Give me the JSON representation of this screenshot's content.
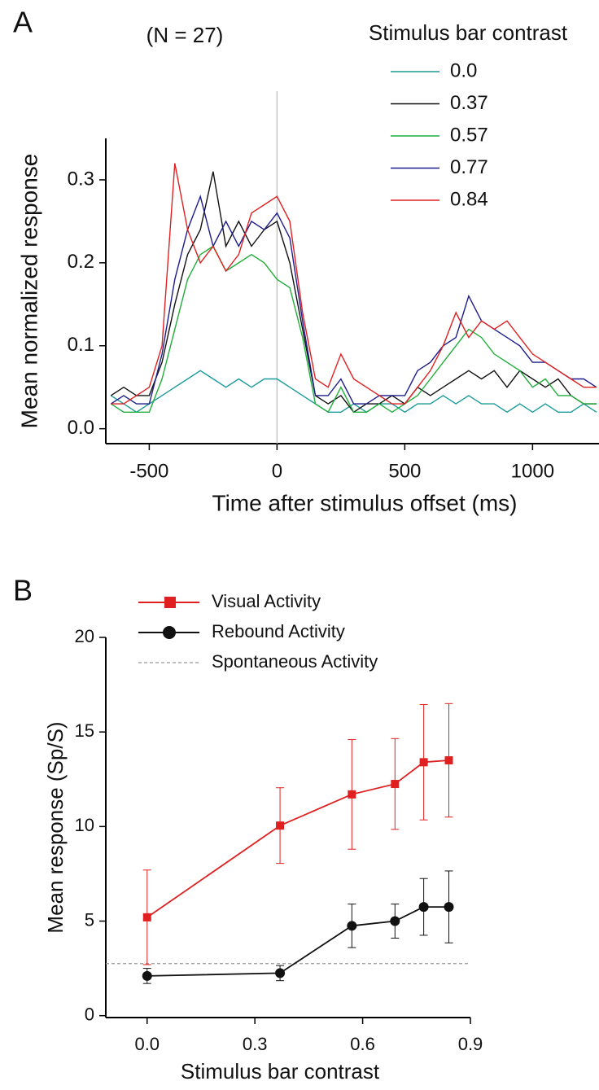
{
  "chart_data": [
    {
      "type": "line",
      "panel": "A",
      "annotation": "(N = 27)",
      "x_label": "Time after stimulus offset (ms)",
      "y_label": "Mean normalized response",
      "legend_title": "Stimulus bar contrast",
      "legend": "upper right",
      "x": [
        -650,
        -600,
        -550,
        -500,
        -450,
        -400,
        -350,
        -300,
        -250,
        -200,
        -150,
        -100,
        -50,
        0,
        50,
        100,
        150,
        200,
        250,
        300,
        350,
        400,
        450,
        500,
        550,
        600,
        650,
        700,
        750,
        800,
        850,
        900,
        950,
        1000,
        1050,
        1100,
        1150,
        1200,
        1250
      ],
      "xlim": [
        -670,
        1260
      ],
      "xticks": [
        -500,
        0,
        500,
        1000
      ],
      "ylim": [
        -0.018,
        0.35
      ],
      "yticks": [
        {
          "value": 0,
          "label": "0.0"
        },
        0.1,
        0.2,
        0.3
      ],
      "vline": 0,
      "series": [
        {
          "name": "0.0",
          "color": "#1a9a9a",
          "values": [
            0.04,
            0.03,
            0.02,
            0.03,
            0.04,
            0.05,
            0.06,
            0.07,
            0.06,
            0.05,
            0.06,
            0.05,
            0.06,
            0.06,
            0.05,
            0.04,
            0.03,
            0.02,
            0.02,
            0.03,
            0.02,
            0.03,
            0.03,
            0.02,
            0.03,
            0.03,
            0.04,
            0.03,
            0.04,
            0.03,
            0.03,
            0.02,
            0.03,
            0.02,
            0.03,
            0.02,
            0.02,
            0.03,
            0.02
          ]
        },
        {
          "name": "0.37",
          "color": "#111111",
          "values": [
            0.04,
            0.05,
            0.04,
            0.04,
            0.08,
            0.15,
            0.21,
            0.24,
            0.31,
            0.22,
            0.25,
            0.22,
            0.24,
            0.25,
            0.2,
            0.12,
            0.04,
            0.03,
            0.04,
            0.02,
            0.03,
            0.03,
            0.04,
            0.03,
            0.05,
            0.04,
            0.05,
            0.06,
            0.07,
            0.06,
            0.07,
            0.05,
            0.07,
            0.06,
            0.05,
            0.06,
            0.04,
            0.03,
            0.03
          ]
        },
        {
          "name": "0.57",
          "color": "#1fae3a",
          "values": [
            0.03,
            0.02,
            0.02,
            0.02,
            0.06,
            0.12,
            0.18,
            0.21,
            0.22,
            0.19,
            0.2,
            0.21,
            0.2,
            0.18,
            0.17,
            0.11,
            0.03,
            0.02,
            0.05,
            0.02,
            0.02,
            0.03,
            0.02,
            0.03,
            0.04,
            0.06,
            0.08,
            0.1,
            0.12,
            0.11,
            0.09,
            0.08,
            0.07,
            0.05,
            0.06,
            0.04,
            0.04,
            0.03,
            0.03
          ]
        },
        {
          "name": "0.77",
          "color": "#1c1c8c",
          "values": [
            0.03,
            0.04,
            0.03,
            0.03,
            0.09,
            0.18,
            0.24,
            0.28,
            0.22,
            0.25,
            0.22,
            0.25,
            0.24,
            0.26,
            0.23,
            0.13,
            0.04,
            0.04,
            0.06,
            0.03,
            0.03,
            0.04,
            0.04,
            0.04,
            0.07,
            0.08,
            0.1,
            0.11,
            0.16,
            0.13,
            0.12,
            0.11,
            0.1,
            0.08,
            0.08,
            0.07,
            0.06,
            0.06,
            0.05
          ]
        },
        {
          "name": "0.84",
          "color": "#e02020",
          "values": [
            0.03,
            0.03,
            0.04,
            0.05,
            0.1,
            0.32,
            0.24,
            0.2,
            0.22,
            0.19,
            0.21,
            0.26,
            0.27,
            0.28,
            0.25,
            0.14,
            0.06,
            0.05,
            0.09,
            0.06,
            0.05,
            0.04,
            0.03,
            0.03,
            0.05,
            0.07,
            0.1,
            0.14,
            0.11,
            0.13,
            0.12,
            0.13,
            0.11,
            0.09,
            0.08,
            0.07,
            0.06,
            0.05,
            0.05
          ]
        }
      ]
    },
    {
      "type": "errorline",
      "panel": "B",
      "x_label": "Stimulus bar contrast",
      "y_label": "Mean response (Sp/S)",
      "legend": "above",
      "x": [
        0,
        0.37,
        0.57,
        0.69,
        0.77,
        0.84
      ],
      "xlim": [
        -0.115,
        0.9
      ],
      "xticks": [
        {
          "value": 0,
          "label": "0.0"
        },
        0.3,
        0.6,
        0.9
      ],
      "ylim": [
        -0.1,
        20
      ],
      "yticks": [
        0,
        5,
        10,
        15,
        20
      ],
      "series": [
        {
          "name": "Visual Activity",
          "color": "#e02020",
          "marker": "square",
          "values": [
            5.2,
            10.05,
            11.7,
            12.25,
            13.4,
            13.5
          ],
          "errors": [
            2.5,
            2.0,
            2.9,
            2.4,
            3.05,
            3.0
          ]
        },
        {
          "name": "Rebound Activity",
          "color": "#111111",
          "marker": "circle",
          "values": [
            2.1,
            2.25,
            4.75,
            5.0,
            5.75,
            5.75
          ],
          "errors": [
            0.4,
            0.4,
            1.15,
            0.9,
            1.5,
            1.9
          ]
        }
      ],
      "reference_lines": [
        {
          "name": "Spontaneous Activity",
          "value": 2.75,
          "color": "#999999"
        }
      ]
    }
  ]
}
